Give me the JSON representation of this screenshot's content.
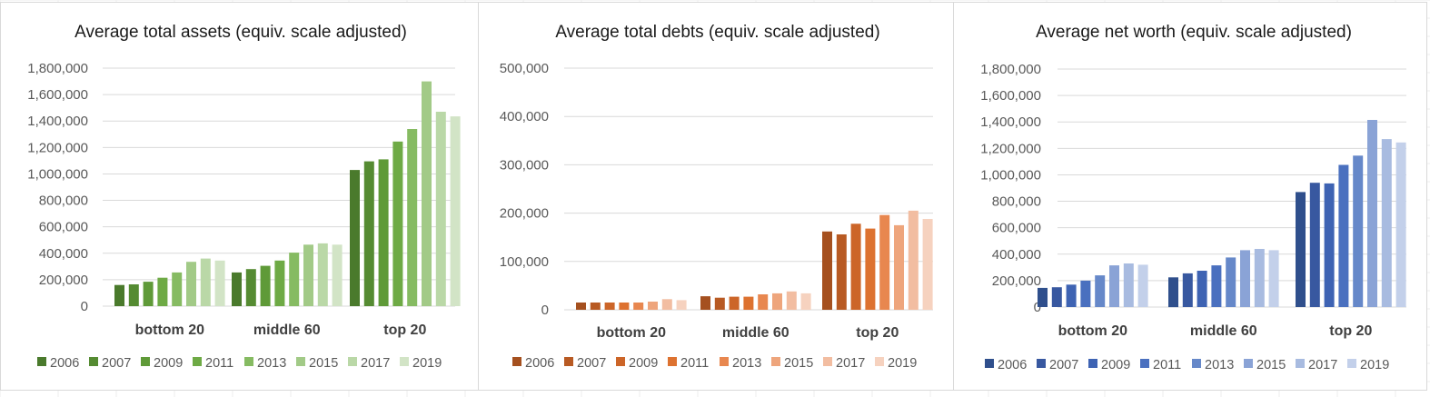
{
  "chart_data": [
    {
      "type": "bar",
      "title": "Average total assets (equiv. scale adjusted)",
      "categories": [
        "bottom 20",
        "middle 60",
        "top 20"
      ],
      "ylim": [
        0,
        1800000
      ],
      "yticks": [
        "0",
        "200,000",
        "400,000",
        "600,000",
        "800,000",
        "1,000,000",
        "1,200,000",
        "1,400,000",
        "1,600,000",
        "1,800,000"
      ],
      "grid": true,
      "legend_position": "bottom",
      "colors": [
        "#4a7a2c",
        "#558b32",
        "#5f9a38",
        "#6eaa45",
        "#86bb62",
        "#a2ca87",
        "#bad8a7",
        "#d2e4c6"
      ],
      "series": [
        {
          "name": "2006",
          "values": [
            160000,
            255000,
            1030000
          ]
        },
        {
          "name": "2007",
          "values": [
            165000,
            280000,
            1095000
          ]
        },
        {
          "name": "2009",
          "values": [
            185000,
            305000,
            1110000
          ]
        },
        {
          "name": "2011",
          "values": [
            215000,
            345000,
            1245000
          ]
        },
        {
          "name": "2013",
          "values": [
            255000,
            405000,
            1340000
          ]
        },
        {
          "name": "2015",
          "values": [
            335000,
            465000,
            1700000
          ]
        },
        {
          "name": "2017",
          "values": [
            360000,
            475000,
            1470000
          ]
        },
        {
          "name": "2019",
          "values": [
            345000,
            465000,
            1435000
          ]
        }
      ]
    },
    {
      "type": "bar",
      "title": "Average total debts (equiv. scale adjusted)",
      "categories": [
        "bottom 20",
        "middle 60",
        "top 20"
      ],
      "ylim": [
        0,
        500000
      ],
      "yticks": [
        "0",
        "100,000",
        "200,000",
        "300,000",
        "400,000",
        "500,000"
      ],
      "grid": true,
      "legend_position": "bottom",
      "colors": [
        "#a5501f",
        "#b85a23",
        "#cc6528",
        "#dd7230",
        "#e8874f",
        "#eea57c",
        "#f2bda1",
        "#f6d2bf"
      ],
      "series": [
        {
          "name": "2006",
          "values": [
            15000,
            28000,
            162000
          ]
        },
        {
          "name": "2007",
          "values": [
            15000,
            25000,
            156000
          ]
        },
        {
          "name": "2009",
          "values": [
            15000,
            27000,
            178000
          ]
        },
        {
          "name": "2011",
          "values": [
            15000,
            27000,
            168000
          ]
        },
        {
          "name": "2013",
          "values": [
            15000,
            32000,
            196000
          ]
        },
        {
          "name": "2015",
          "values": [
            17000,
            34000,
            175000
          ]
        },
        {
          "name": "2017",
          "values": [
            22000,
            38000,
            205000
          ]
        },
        {
          "name": "2019",
          "values": [
            20000,
            34000,
            188000
          ]
        }
      ]
    },
    {
      "type": "bar",
      "title": "Average net worth (equiv. scale adjusted)",
      "categories": [
        "bottom 20",
        "middle 60",
        "top 20"
      ],
      "ylim": [
        0,
        1800000
      ],
      "yticks": [
        "0",
        "200,000",
        "400,000",
        "600,000",
        "800,000",
        "1,000,000",
        "1,200,000",
        "1,400,000",
        "1,600,000",
        "1,800,000"
      ],
      "grid": true,
      "legend_position": "bottom",
      "colors": [
        "#2f4f8c",
        "#3858a0",
        "#3e63b3",
        "#4a70bf",
        "#6688c9",
        "#8aa3d6",
        "#a8bbe0",
        "#c3d0ea"
      ],
      "series": [
        {
          "name": "2006",
          "values": [
            145000,
            225000,
            870000
          ]
        },
        {
          "name": "2007",
          "values": [
            150000,
            255000,
            940000
          ]
        },
        {
          "name": "2009",
          "values": [
            170000,
            275000,
            935000
          ]
        },
        {
          "name": "2011",
          "values": [
            200000,
            315000,
            1075000
          ]
        },
        {
          "name": "2013",
          "values": [
            240000,
            375000,
            1145000
          ]
        },
        {
          "name": "2015",
          "values": [
            315000,
            430000,
            1415000
          ]
        },
        {
          "name": "2017",
          "values": [
            330000,
            440000,
            1270000
          ]
        },
        {
          "name": "2019",
          "values": [
            320000,
            430000,
            1245000
          ]
        }
      ]
    }
  ]
}
